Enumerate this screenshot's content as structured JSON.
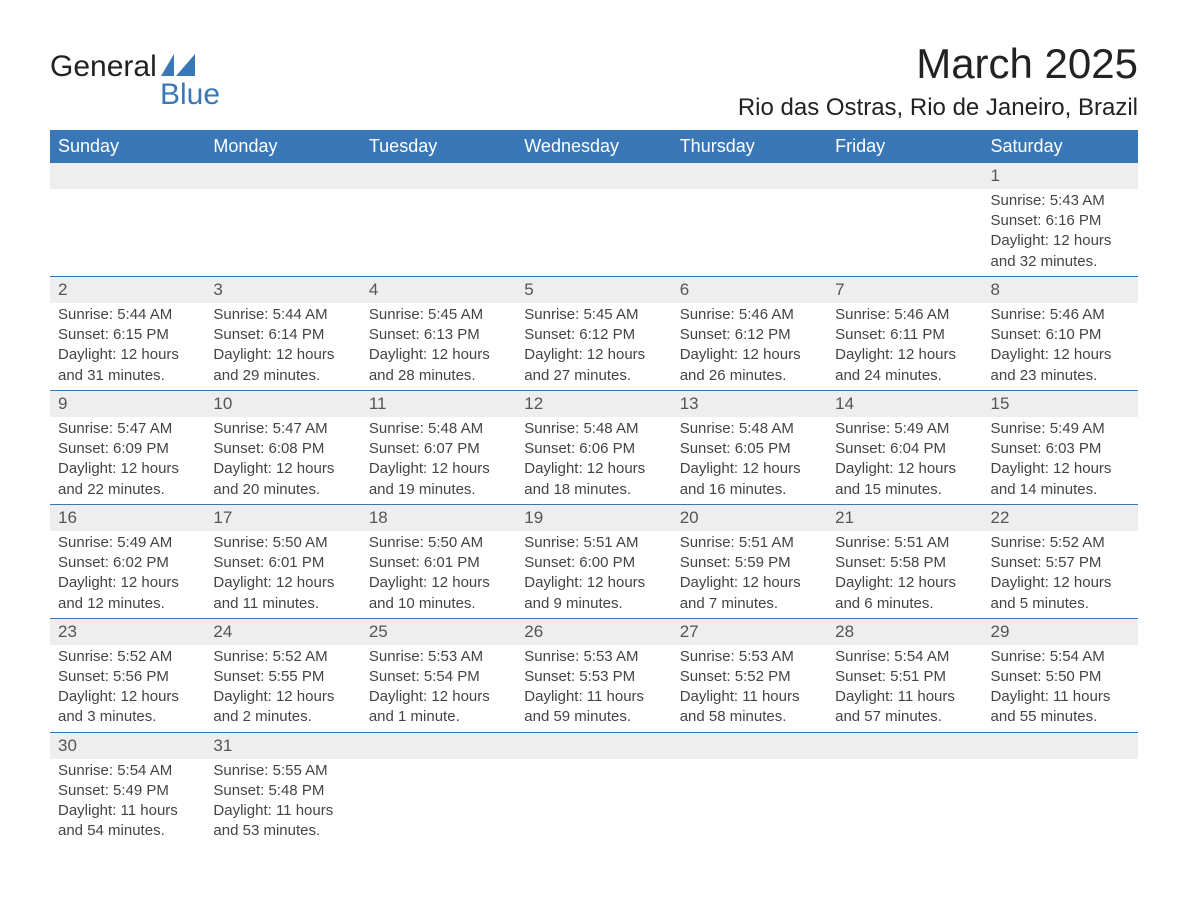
{
  "logo": {
    "text_a": "General",
    "text_b": "Blue",
    "flag_color": "#3a77b7"
  },
  "title": "March 2025",
  "location": "Rio das Ostras, Rio de Janeiro, Brazil",
  "colors": {
    "header_bg": "#3a77b7",
    "header_text": "#ffffff",
    "daynum_bg": "#eeeeee",
    "row_border": "#3a77b7",
    "body_text": "#444444"
  },
  "weekdays": [
    "Sunday",
    "Monday",
    "Tuesday",
    "Wednesday",
    "Thursday",
    "Friday",
    "Saturday"
  ],
  "weeks": [
    [
      null,
      null,
      null,
      null,
      null,
      null,
      {
        "n": "1",
        "sr": "Sunrise: 5:43 AM",
        "ss": "Sunset: 6:16 PM",
        "d1": "Daylight: 12 hours",
        "d2": "and 32 minutes."
      }
    ],
    [
      {
        "n": "2",
        "sr": "Sunrise: 5:44 AM",
        "ss": "Sunset: 6:15 PM",
        "d1": "Daylight: 12 hours",
        "d2": "and 31 minutes."
      },
      {
        "n": "3",
        "sr": "Sunrise: 5:44 AM",
        "ss": "Sunset: 6:14 PM",
        "d1": "Daylight: 12 hours",
        "d2": "and 29 minutes."
      },
      {
        "n": "4",
        "sr": "Sunrise: 5:45 AM",
        "ss": "Sunset: 6:13 PM",
        "d1": "Daylight: 12 hours",
        "d2": "and 28 minutes."
      },
      {
        "n": "5",
        "sr": "Sunrise: 5:45 AM",
        "ss": "Sunset: 6:12 PM",
        "d1": "Daylight: 12 hours",
        "d2": "and 27 minutes."
      },
      {
        "n": "6",
        "sr": "Sunrise: 5:46 AM",
        "ss": "Sunset: 6:12 PM",
        "d1": "Daylight: 12 hours",
        "d2": "and 26 minutes."
      },
      {
        "n": "7",
        "sr": "Sunrise: 5:46 AM",
        "ss": "Sunset: 6:11 PM",
        "d1": "Daylight: 12 hours",
        "d2": "and 24 minutes."
      },
      {
        "n": "8",
        "sr": "Sunrise: 5:46 AM",
        "ss": "Sunset: 6:10 PM",
        "d1": "Daylight: 12 hours",
        "d2": "and 23 minutes."
      }
    ],
    [
      {
        "n": "9",
        "sr": "Sunrise: 5:47 AM",
        "ss": "Sunset: 6:09 PM",
        "d1": "Daylight: 12 hours",
        "d2": "and 22 minutes."
      },
      {
        "n": "10",
        "sr": "Sunrise: 5:47 AM",
        "ss": "Sunset: 6:08 PM",
        "d1": "Daylight: 12 hours",
        "d2": "and 20 minutes."
      },
      {
        "n": "11",
        "sr": "Sunrise: 5:48 AM",
        "ss": "Sunset: 6:07 PM",
        "d1": "Daylight: 12 hours",
        "d2": "and 19 minutes."
      },
      {
        "n": "12",
        "sr": "Sunrise: 5:48 AM",
        "ss": "Sunset: 6:06 PM",
        "d1": "Daylight: 12 hours",
        "d2": "and 18 minutes."
      },
      {
        "n": "13",
        "sr": "Sunrise: 5:48 AM",
        "ss": "Sunset: 6:05 PM",
        "d1": "Daylight: 12 hours",
        "d2": "and 16 minutes."
      },
      {
        "n": "14",
        "sr": "Sunrise: 5:49 AM",
        "ss": "Sunset: 6:04 PM",
        "d1": "Daylight: 12 hours",
        "d2": "and 15 minutes."
      },
      {
        "n": "15",
        "sr": "Sunrise: 5:49 AM",
        "ss": "Sunset: 6:03 PM",
        "d1": "Daylight: 12 hours",
        "d2": "and 14 minutes."
      }
    ],
    [
      {
        "n": "16",
        "sr": "Sunrise: 5:49 AM",
        "ss": "Sunset: 6:02 PM",
        "d1": "Daylight: 12 hours",
        "d2": "and 12 minutes."
      },
      {
        "n": "17",
        "sr": "Sunrise: 5:50 AM",
        "ss": "Sunset: 6:01 PM",
        "d1": "Daylight: 12 hours",
        "d2": "and 11 minutes."
      },
      {
        "n": "18",
        "sr": "Sunrise: 5:50 AM",
        "ss": "Sunset: 6:01 PM",
        "d1": "Daylight: 12 hours",
        "d2": "and 10 minutes."
      },
      {
        "n": "19",
        "sr": "Sunrise: 5:51 AM",
        "ss": "Sunset: 6:00 PM",
        "d1": "Daylight: 12 hours",
        "d2": "and 9 minutes."
      },
      {
        "n": "20",
        "sr": "Sunrise: 5:51 AM",
        "ss": "Sunset: 5:59 PM",
        "d1": "Daylight: 12 hours",
        "d2": "and 7 minutes."
      },
      {
        "n": "21",
        "sr": "Sunrise: 5:51 AM",
        "ss": "Sunset: 5:58 PM",
        "d1": "Daylight: 12 hours",
        "d2": "and 6 minutes."
      },
      {
        "n": "22",
        "sr": "Sunrise: 5:52 AM",
        "ss": "Sunset: 5:57 PM",
        "d1": "Daylight: 12 hours",
        "d2": "and 5 minutes."
      }
    ],
    [
      {
        "n": "23",
        "sr": "Sunrise: 5:52 AM",
        "ss": "Sunset: 5:56 PM",
        "d1": "Daylight: 12 hours",
        "d2": "and 3 minutes."
      },
      {
        "n": "24",
        "sr": "Sunrise: 5:52 AM",
        "ss": "Sunset: 5:55 PM",
        "d1": "Daylight: 12 hours",
        "d2": "and 2 minutes."
      },
      {
        "n": "25",
        "sr": "Sunrise: 5:53 AM",
        "ss": "Sunset: 5:54 PM",
        "d1": "Daylight: 12 hours",
        "d2": "and 1 minute."
      },
      {
        "n": "26",
        "sr": "Sunrise: 5:53 AM",
        "ss": "Sunset: 5:53 PM",
        "d1": "Daylight: 11 hours",
        "d2": "and 59 minutes."
      },
      {
        "n": "27",
        "sr": "Sunrise: 5:53 AM",
        "ss": "Sunset: 5:52 PM",
        "d1": "Daylight: 11 hours",
        "d2": "and 58 minutes."
      },
      {
        "n": "28",
        "sr": "Sunrise: 5:54 AM",
        "ss": "Sunset: 5:51 PM",
        "d1": "Daylight: 11 hours",
        "d2": "and 57 minutes."
      },
      {
        "n": "29",
        "sr": "Sunrise: 5:54 AM",
        "ss": "Sunset: 5:50 PM",
        "d1": "Daylight: 11 hours",
        "d2": "and 55 minutes."
      }
    ],
    [
      {
        "n": "30",
        "sr": "Sunrise: 5:54 AM",
        "ss": "Sunset: 5:49 PM",
        "d1": "Daylight: 11 hours",
        "d2": "and 54 minutes."
      },
      {
        "n": "31",
        "sr": "Sunrise: 5:55 AM",
        "ss": "Sunset: 5:48 PM",
        "d1": "Daylight: 11 hours",
        "d2": "and 53 minutes."
      },
      null,
      null,
      null,
      null,
      null
    ]
  ]
}
